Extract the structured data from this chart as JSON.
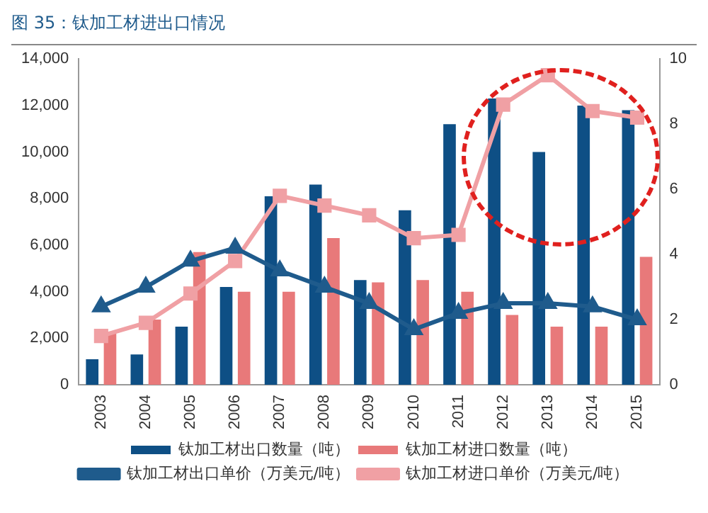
{
  "chart_data": {
    "type": "bar",
    "title": "图 35：钛加工材进出口情况",
    "categories": [
      "2003",
      "2004",
      "2005",
      "2006",
      "2007",
      "2008",
      "2009",
      "2010",
      "2011",
      "2012",
      "2013",
      "2014",
      "2015"
    ],
    "series": [
      {
        "name": "钛加工材出口数量（吨）",
        "color": "#0e4f85",
        "values": [
          1100,
          1300,
          2500,
          4200,
          8100,
          8600,
          4500,
          7500,
          11200,
          12300,
          10000,
          12000,
          11800
        ]
      },
      {
        "name": "钛加工材进口数量（吨）",
        "color": "#e8797a",
        "values": [
          2200,
          2800,
          5700,
          4000,
          4000,
          6300,
          4400,
          4500,
          4000,
          3000,
          2500,
          2500,
          5500
        ]
      },
      {
        "name": "钛加工材出口单价（万美元/吨）",
        "type": "line",
        "axis": "y2",
        "marker": "triangle",
        "color": "#1f5b8c",
        "values": [
          2.4,
          3.0,
          3.8,
          4.2,
          3.5,
          3.0,
          2.5,
          1.7,
          2.2,
          2.5,
          2.5,
          2.4,
          2.0
        ]
      },
      {
        "name": "钛加工材进口单价（万美元/吨）",
        "type": "line",
        "axis": "y2",
        "marker": "square",
        "color": "#f0a0a4",
        "values": [
          1.5,
          1.9,
          2.8,
          3.8,
          5.8,
          5.5,
          5.2,
          4.5,
          4.6,
          8.6,
          9.5,
          8.4,
          8.2
        ]
      }
    ],
    "ylim": [
      0,
      14000
    ],
    "yticks": [
      0,
      {
        "value": 2000,
        "label": "2,000"
      },
      {
        "value": 4000,
        "label": "4,000"
      },
      {
        "value": 6000,
        "label": "6,000"
      },
      {
        "value": 8000,
        "label": "8,000"
      },
      {
        "value": 10000,
        "label": "10,000"
      },
      {
        "value": 12000,
        "label": "12,000"
      },
      {
        "value": 14000,
        "label": "14,000"
      }
    ],
    "y2lim": [
      0,
      10
    ],
    "y2ticks": [
      0,
      2,
      4,
      6,
      8,
      10
    ],
    "grid": false,
    "legend": "bottom"
  }
}
